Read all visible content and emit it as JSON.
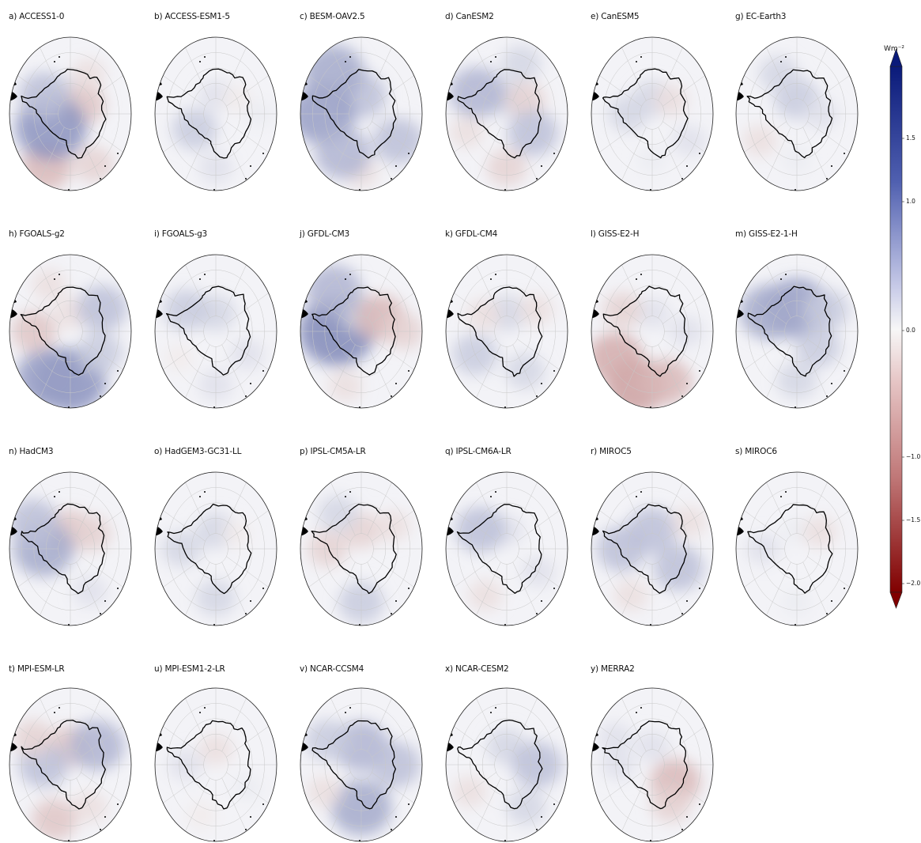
{
  "chart_data": {
    "type": "heatmap",
    "projection": "south-polar-stereographic",
    "grid": true,
    "colormap": "diverging red-white-blue (red negative, blue positive)",
    "panels": [
      {
        "label": "a) ACCESS1-0",
        "field": [
          {
            "lon": 0,
            "lat": -75,
            "value": 0.2
          },
          {
            "lon": 60,
            "lat": -78,
            "value": -0.4
          },
          {
            "lon": 150,
            "lat": -52,
            "value": -0.3
          },
          {
            "lon": 210,
            "lat": -50,
            "value": -0.5
          },
          {
            "lon": 240,
            "lat": -72,
            "value": 0.9
          },
          {
            "lon": 300,
            "lat": -65,
            "value": 0.5
          },
          {
            "lon": 30,
            "lat": -60,
            "value": -0.2
          }
        ]
      },
      {
        "label": "b) ACCESS-ESM1-5",
        "field": [
          {
            "lon": 0,
            "lat": -78,
            "value": 0.2
          },
          {
            "lon": 60,
            "lat": -70,
            "value": -0.1
          },
          {
            "lon": 240,
            "lat": -70,
            "value": 0.4
          },
          {
            "lon": 180,
            "lat": -55,
            "value": 0.2
          },
          {
            "lon": 90,
            "lat": -55,
            "value": 0.1
          }
        ]
      },
      {
        "label": "c) BESM-OAV2.5",
        "field": [
          {
            "lon": 0,
            "lat": -78,
            "value": 0.5
          },
          {
            "lon": 270,
            "lat": -58,
            "value": 0.8
          },
          {
            "lon": 320,
            "lat": -55,
            "value": 0.7
          },
          {
            "lon": 120,
            "lat": -55,
            "value": 0.5
          },
          {
            "lon": 180,
            "lat": -52,
            "value": -0.2
          },
          {
            "lon": 210,
            "lat": -60,
            "value": 0.6
          }
        ]
      },
      {
        "label": "d) CanESM2",
        "field": [
          {
            "lon": 0,
            "lat": -80,
            "value": 0.3
          },
          {
            "lon": 60,
            "lat": -72,
            "value": -0.3
          },
          {
            "lon": 300,
            "lat": -62,
            "value": 0.6
          },
          {
            "lon": 120,
            "lat": -65,
            "value": 0.5
          },
          {
            "lon": 180,
            "lat": -55,
            "value": -0.3
          },
          {
            "lon": 250,
            "lat": -55,
            "value": -0.2
          },
          {
            "lon": 20,
            "lat": -55,
            "value": 0.3
          }
        ]
      },
      {
        "label": "e) CanESM5",
        "field": [
          {
            "lon": 0,
            "lat": -80,
            "value": 0.3
          },
          {
            "lon": 60,
            "lat": -72,
            "value": -0.2
          },
          {
            "lon": 270,
            "lat": -70,
            "value": 0.3
          },
          {
            "lon": 180,
            "lat": -60,
            "value": 0.1
          },
          {
            "lon": 120,
            "lat": -55,
            "value": 0.2
          }
        ]
      },
      {
        "label": "g) EC-Earth3",
        "field": [
          {
            "lon": 0,
            "lat": -80,
            "value": 0.4
          },
          {
            "lon": 330,
            "lat": -60,
            "value": 0.3
          },
          {
            "lon": 240,
            "lat": -55,
            "value": -0.2
          },
          {
            "lon": 90,
            "lat": -70,
            "value": 0.2
          },
          {
            "lon": 180,
            "lat": -60,
            "value": 0.1
          }
        ]
      },
      {
        "label": "h) FGOALS-g2",
        "field": [
          {
            "lon": 180,
            "lat": -58,
            "value": 0.9
          },
          {
            "lon": 210,
            "lat": -55,
            "value": 0.8
          },
          {
            "lon": 270,
            "lat": -60,
            "value": -0.4
          },
          {
            "lon": 0,
            "lat": -78,
            "value": -0.2
          },
          {
            "lon": 60,
            "lat": -60,
            "value": 0.5
          },
          {
            "lon": 120,
            "lat": -62,
            "value": 0.4
          },
          {
            "lon": 330,
            "lat": -55,
            "value": -0.2
          }
        ]
      },
      {
        "label": "i) FGOALS-g3",
        "field": [
          {
            "lon": 0,
            "lat": -78,
            "value": 0.3
          },
          {
            "lon": 300,
            "lat": -62,
            "value": 0.4
          },
          {
            "lon": 240,
            "lat": -55,
            "value": -0.1
          },
          {
            "lon": 120,
            "lat": -60,
            "value": 0.2
          },
          {
            "lon": 180,
            "lat": -55,
            "value": 0.2
          }
        ]
      },
      {
        "label": "j) GFDL-CM3",
        "field": [
          {
            "lon": 270,
            "lat": -70,
            "value": 1.0
          },
          {
            "lon": 0,
            "lat": -78,
            "value": 0.3
          },
          {
            "lon": 60,
            "lat": -72,
            "value": -0.5
          },
          {
            "lon": 90,
            "lat": -55,
            "value": -0.3
          },
          {
            "lon": 200,
            "lat": -52,
            "value": -0.2
          },
          {
            "lon": 320,
            "lat": -55,
            "value": 0.6
          }
        ]
      },
      {
        "label": "k)  GFDL-CM4",
        "field": [
          {
            "lon": 0,
            "lat": -78,
            "value": 0.3
          },
          {
            "lon": 60,
            "lat": -62,
            "value": -0.2
          },
          {
            "lon": 240,
            "lat": -60,
            "value": 0.4
          },
          {
            "lon": 300,
            "lat": -68,
            "value": -0.2
          },
          {
            "lon": 150,
            "lat": -60,
            "value": 0.3
          }
        ]
      },
      {
        "label": "l) GISS-E2-H",
        "field": [
          {
            "lon": 200,
            "lat": -52,
            "value": -0.7
          },
          {
            "lon": 240,
            "lat": -55,
            "value": -0.6
          },
          {
            "lon": 160,
            "lat": -55,
            "value": -0.5
          },
          {
            "lon": 0,
            "lat": -78,
            "value": 0.2
          },
          {
            "lon": 300,
            "lat": -62,
            "value": -0.3
          },
          {
            "lon": 90,
            "lat": -62,
            "value": 0.2
          }
        ]
      },
      {
        "label": "m) GISS-E2-1-H",
        "field": [
          {
            "lon": 0,
            "lat": -75,
            "value": 0.8
          },
          {
            "lon": 300,
            "lat": -65,
            "value": 0.7
          },
          {
            "lon": 60,
            "lat": -62,
            "value": 0.4
          },
          {
            "lon": 180,
            "lat": -58,
            "value": 0.3
          },
          {
            "lon": 120,
            "lat": -70,
            "value": 0.4
          }
        ]
      },
      {
        "label": "n) HadCM3",
        "field": [
          {
            "lon": 0,
            "lat": -78,
            "value": -0.4
          },
          {
            "lon": 60,
            "lat": -70,
            "value": -0.3
          },
          {
            "lon": 270,
            "lat": -68,
            "value": 0.7
          },
          {
            "lon": 300,
            "lat": -55,
            "value": 0.5
          },
          {
            "lon": 150,
            "lat": -58,
            "value": 0.2
          }
        ]
      },
      {
        "label": "o) HadGEM3-GC31-LL",
        "field": [
          {
            "lon": 0,
            "lat": -78,
            "value": 0.3
          },
          {
            "lon": 270,
            "lat": -62,
            "value": 0.3
          },
          {
            "lon": 60,
            "lat": -70,
            "value": -0.1
          },
          {
            "lon": 180,
            "lat": -58,
            "value": 0.3
          }
        ]
      },
      {
        "label": "p) IPSL-CM5A-LR",
        "field": [
          {
            "lon": 0,
            "lat": -78,
            "value": -0.3
          },
          {
            "lon": 60,
            "lat": -60,
            "value": -0.2
          },
          {
            "lon": 270,
            "lat": -62,
            "value": -0.3
          },
          {
            "lon": 180,
            "lat": -55,
            "value": 0.4
          },
          {
            "lon": 320,
            "lat": -60,
            "value": 0.3
          }
        ]
      },
      {
        "label": "q) IPSL-CM6A-LR",
        "field": [
          {
            "lon": 0,
            "lat": -78,
            "value": 0.2
          },
          {
            "lon": 300,
            "lat": -65,
            "value": 0.5
          },
          {
            "lon": 210,
            "lat": -55,
            "value": -0.2
          },
          {
            "lon": 120,
            "lat": -60,
            "value": 0.2
          }
        ]
      },
      {
        "label": "r) MIROC5",
        "field": [
          {
            "lon": 0,
            "lat": -78,
            "value": 0.5
          },
          {
            "lon": 270,
            "lat": -65,
            "value": 0.5
          },
          {
            "lon": 120,
            "lat": -65,
            "value": 0.5
          },
          {
            "lon": 210,
            "lat": -55,
            "value": -0.2
          },
          {
            "lon": 60,
            "lat": -55,
            "value": -0.2
          }
        ]
      },
      {
        "label": "s) MIROC6",
        "field": [
          {
            "lon": 0,
            "lat": -78,
            "value": 0.1
          },
          {
            "lon": 60,
            "lat": -68,
            "value": -0.2
          },
          {
            "lon": 270,
            "lat": -62,
            "value": 0.2
          },
          {
            "lon": 180,
            "lat": -55,
            "value": 0.1
          }
        ]
      },
      {
        "label": "t) MPI-ESM-LR",
        "field": [
          {
            "lon": 0,
            "lat": -78,
            "value": -0.4
          },
          {
            "lon": 60,
            "lat": -65,
            "value": 0.6
          },
          {
            "lon": 270,
            "lat": -68,
            "value": 0.5
          },
          {
            "lon": 200,
            "lat": -52,
            "value": -0.4
          },
          {
            "lon": 300,
            "lat": -55,
            "value": -0.3
          },
          {
            "lon": 150,
            "lat": -58,
            "value": -0.2
          }
        ]
      },
      {
        "label": "u) MPI-ESM1-2-LR",
        "field": [
          {
            "lon": 0,
            "lat": -80,
            "value": -0.2
          },
          {
            "lon": 270,
            "lat": -65,
            "value": 0.2
          },
          {
            "lon": 120,
            "lat": -60,
            "value": 0.1
          },
          {
            "lon": 200,
            "lat": -55,
            "value": -0.1
          }
        ]
      },
      {
        "label": "v) NCAR-CCSM4",
        "field": [
          {
            "lon": 0,
            "lat": -78,
            "value": 0.6
          },
          {
            "lon": 90,
            "lat": -62,
            "value": 0.5
          },
          {
            "lon": 300,
            "lat": -58,
            "value": 0.4
          },
          {
            "lon": 180,
            "lat": -62,
            "value": 0.7
          },
          {
            "lon": 240,
            "lat": -55,
            "value": -0.2
          }
        ]
      },
      {
        "label": "x) NCAR-CESM2",
        "field": [
          {
            "lon": 0,
            "lat": -78,
            "value": 0.3
          },
          {
            "lon": 90,
            "lat": -65,
            "value": 0.5
          },
          {
            "lon": 240,
            "lat": -55,
            "value": -0.2
          },
          {
            "lon": 150,
            "lat": -58,
            "value": 0.3
          }
        ]
      },
      {
        "label": "y) MERRA2",
        "field": [
          {
            "lon": 0,
            "lat": -78,
            "value": 0.2
          },
          {
            "lon": 120,
            "lat": -68,
            "value": -0.5
          },
          {
            "lon": 150,
            "lat": -60,
            "value": -0.3
          },
          {
            "lon": 270,
            "lat": -62,
            "value": 0.2
          },
          {
            "lon": 300,
            "lat": -55,
            "value": 0.2
          }
        ]
      }
    ],
    "colorbar": {
      "unit": "Wm⁻²",
      "range": [
        -2.0,
        2.0
      ],
      "ticks": [
        1.5,
        1.0,
        0.0,
        -1.0,
        -1.5,
        -2.0
      ],
      "tick_labels": [
        "1.5",
        "1.0",
        "0.0",
        "−1.0",
        "−1.5",
        "−2.0"
      ],
      "extend": "both",
      "neg_color": "#800000",
      "zero_color": "#f7f7f7",
      "pos_color": "#0a1a7a"
    }
  }
}
